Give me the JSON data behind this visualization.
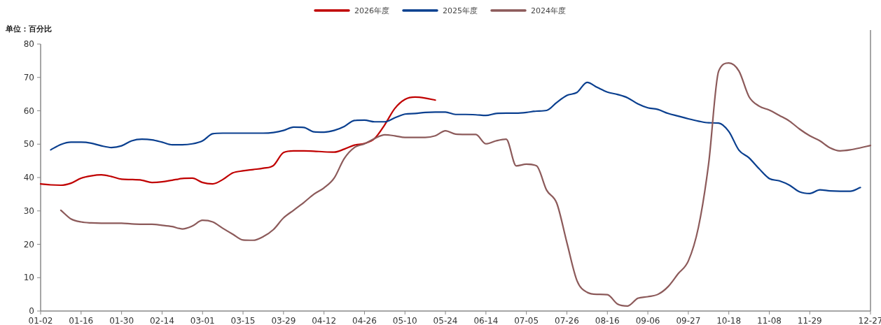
{
  "chart_data": {
    "type": "line",
    "ylabel": "单位：百分比",
    "legend": "top",
    "categories": [
      "01-02",
      null,
      null,
      null,
      "01-16",
      null,
      null,
      null,
      "01-30",
      null,
      null,
      null,
      "02-14",
      null,
      null,
      null,
      "03-01",
      null,
      null,
      null,
      "03-15",
      null,
      null,
      null,
      "03-29",
      null,
      null,
      null,
      "04-12",
      null,
      null,
      null,
      "04-26",
      null,
      null,
      null,
      "05-10",
      null,
      null,
      null,
      "05-24",
      null,
      null,
      null,
      "06-14",
      null,
      null,
      null,
      "07-05",
      null,
      null,
      null,
      "07-26",
      null,
      null,
      null,
      "08-16",
      null,
      null,
      null,
      "09-06",
      null,
      null,
      null,
      "09-27",
      null,
      null,
      null,
      "10-18",
      null,
      null,
      null,
      "11-08",
      null,
      null,
      null,
      "11-29",
      null,
      null,
      null,
      null,
      null,
      "12-27"
    ],
    "ylim": [
      0,
      80
    ],
    "yticks": [
      0,
      10,
      20,
      30,
      40,
      50,
      60,
      70,
      80
    ],
    "grid": false,
    "marker": "none",
    "line_style": "solid",
    "series": [
      {
        "name": "2026年度",
        "color": "#c00000",
        "values": [
          38.1,
          37.8,
          37.7,
          38.3,
          39.8,
          40.5,
          40.8,
          40.3,
          39.5,
          39.4,
          39.2,
          38.5,
          38.7,
          39.2,
          39.7,
          39.8,
          38.5,
          38.1,
          39.4,
          41.4,
          42.0,
          42.4,
          42.8,
          43.6,
          47.5,
          48.0,
          48.0,
          47.9,
          47.7,
          47.6,
          48.5,
          49.7,
          50.2,
          51.7,
          55.8,
          60.7,
          63.4,
          64.1,
          63.8,
          63.2,
          null,
          null,
          null,
          null,
          null,
          null,
          null,
          null,
          null,
          null,
          null,
          null,
          null,
          null,
          null,
          null,
          null,
          null,
          null,
          null,
          null,
          null,
          null,
          null,
          null,
          null,
          null,
          null,
          null,
          null,
          null,
          null,
          null,
          null,
          null,
          null,
          null,
          null,
          null,
          null,
          null,
          null,
          null
        ]
      },
      {
        "name": "2025年度",
        "color": "#0a3f8f",
        "values": [
          null,
          48.3,
          49.9,
          50.6,
          50.6,
          50.3,
          49.5,
          49.0,
          49.5,
          51.0,
          51.5,
          51.3,
          50.6,
          49.8,
          49.8,
          50.1,
          51.0,
          53.1,
          53.3,
          53.3,
          53.3,
          53.3,
          53.3,
          53.5,
          54.1,
          55.1,
          55.0,
          53.7,
          53.6,
          54.1,
          55.3,
          57.1,
          57.2,
          56.7,
          56.7,
          57.9,
          59.0,
          59.2,
          59.5,
          59.6,
          59.6,
          58.9,
          58.9,
          58.8,
          58.6,
          59.2,
          59.3,
          59.3,
          59.5,
          59.9,
          60.1,
          62.5,
          64.6,
          65.5,
          68.5,
          67.0,
          65.6,
          64.9,
          63.9,
          62.1,
          60.9,
          60.4,
          59.2,
          58.4,
          57.6,
          56.9,
          56.4,
          56.3,
          53.8,
          48.2,
          45.9,
          42.6,
          39.7,
          39.0,
          37.7,
          35.7,
          35.2,
          36.3,
          36.0,
          35.9,
          35.9,
          37.0,
          null
        ]
      },
      {
        "name": "2024年度",
        "color": "#8c5a5a",
        "values": [
          null,
          null,
          30.2,
          27.6,
          26.7,
          26.4,
          26.3,
          26.3,
          26.3,
          26.1,
          26.0,
          26.0,
          25.7,
          25.3,
          24.6,
          25.5,
          27.2,
          26.7,
          24.8,
          23.0,
          21.3,
          21.2,
          22.3,
          24.4,
          27.9,
          30.2,
          32.5,
          35.0,
          36.9,
          39.8,
          45.7,
          49.0,
          50.1,
          51.7,
          52.8,
          52.5,
          52.0,
          52.0,
          52.0,
          52.5,
          54.0,
          53.0,
          52.9,
          52.9,
          50.1,
          51.0,
          51.5,
          43.5,
          44.0,
          43.5,
          36.2,
          32.3,
          20.5,
          9.1,
          5.6,
          5.0,
          4.9,
          2.1,
          1.5,
          3.8,
          4.3,
          5.0,
          7.3,
          11.2,
          15.0,
          25.1,
          44.0,
          71.9,
          74.3,
          71.9,
          64.2,
          61.4,
          60.2,
          58.6,
          56.9,
          54.5,
          52.5,
          51.0,
          48.9,
          48.0,
          48.3,
          48.9,
          49.6
        ]
      }
    ]
  }
}
